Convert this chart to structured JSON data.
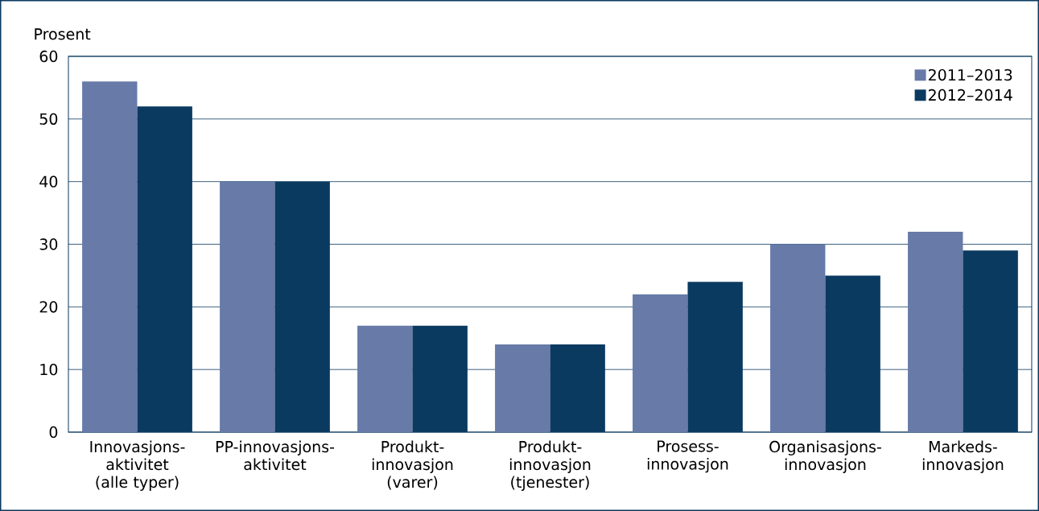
{
  "chart_data": {
    "type": "bar",
    "ylabel": "Prosent",
    "categories": [
      "Innovasjons-aktivitet (alle typer)",
      "PP-innovasjons-aktivitet",
      "Produkt-innovasjon (varer)",
      "Produkt-innovasjon (tjenester)",
      "Prosess-innovasjon",
      "Organisasjons-innovasjon",
      "Markeds-innovasjon"
    ],
    "series": [
      {
        "name": "2011–2013",
        "color": "#677aa8",
        "values": [
          56,
          40,
          17,
          14,
          22,
          30,
          32
        ]
      },
      {
        "name": "2012–2014",
        "color": "#0b3a60",
        "values": [
          52,
          40,
          17,
          14,
          24,
          25,
          29
        ]
      }
    ],
    "ylim": [
      0,
      60
    ],
    "yticks": [
      0,
      10,
      20,
      30,
      40,
      50,
      60
    ],
    "grid": "y",
    "legend": "top right"
  }
}
